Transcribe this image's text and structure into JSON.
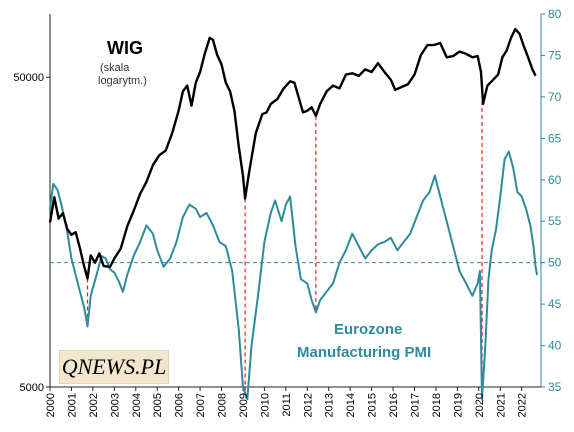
{
  "chart_data": {
    "type": "line",
    "wig_title": "WIG",
    "wig_note_line1": "(skala",
    "wig_note_line2": "logarytm.)",
    "pmi_label_line1": "Eurozone",
    "pmi_label_line2": "Manufacturing  PMI",
    "left_axis": {
      "scale": "log",
      "ticks": [
        "50000",
        "5000"
      ],
      "range": [
        5000,
        80000
      ]
    },
    "right_axis": {
      "scale": "linear",
      "ticks": [
        "35",
        "40",
        "45",
        "50",
        "55",
        "60",
        "65",
        "70",
        "75",
        "80"
      ],
      "range": [
        35,
        80
      ]
    },
    "x_ticks": [
      "2000",
      "2001",
      "2002",
      "2003",
      "2004",
      "2005",
      "2006",
      "2007",
      "2008",
      "2009",
      "2010",
      "2011",
      "2012",
      "2013",
      "2014",
      "2015",
      "2016",
      "2017",
      "2018",
      "2019",
      "2020",
      "2021",
      "2022"
    ],
    "x_range": [
      2000,
      2022.9
    ],
    "reference_line": {
      "value": 50,
      "axis": "right",
      "style": "dashed"
    },
    "event_lines": [
      2001.75,
      2009.1,
      2012.4,
      2020.15
    ],
    "colors": {
      "wig": "#000000",
      "pmi": "#2e8b9a",
      "event": "#e02020",
      "right_axis": "#2e8b9a"
    },
    "series": [
      {
        "name": "WIG",
        "axis": "left",
        "points": [
          [
            2000.0,
            17000
          ],
          [
            2000.2,
            20500
          ],
          [
            2000.4,
            17500
          ],
          [
            2000.6,
            18200
          ],
          [
            2000.8,
            16200
          ],
          [
            2001.0,
            15500
          ],
          [
            2001.2,
            15800
          ],
          [
            2001.4,
            14000
          ],
          [
            2001.6,
            12200
          ],
          [
            2001.75,
            11200
          ],
          [
            2001.9,
            13300
          ],
          [
            2002.1,
            12600
          ],
          [
            2002.3,
            13500
          ],
          [
            2002.5,
            12300
          ],
          [
            2002.8,
            12200
          ],
          [
            2003.0,
            13000
          ],
          [
            2003.3,
            14000
          ],
          [
            2003.6,
            16500
          ],
          [
            2003.9,
            18500
          ],
          [
            2004.2,
            21000
          ],
          [
            2004.5,
            23000
          ],
          [
            2004.8,
            26000
          ],
          [
            2005.1,
            28000
          ],
          [
            2005.4,
            29000
          ],
          [
            2005.7,
            33000
          ],
          [
            2006.0,
            39000
          ],
          [
            2006.2,
            45000
          ],
          [
            2006.4,
            47000
          ],
          [
            2006.6,
            40500
          ],
          [
            2006.8,
            48000
          ],
          [
            2007.0,
            52000
          ],
          [
            2007.2,
            59000
          ],
          [
            2007.45,
            67000
          ],
          [
            2007.6,
            66000
          ],
          [
            2007.8,
            59000
          ],
          [
            2008.0,
            55000
          ],
          [
            2008.2,
            48000
          ],
          [
            2008.4,
            45000
          ],
          [
            2008.6,
            39000
          ],
          [
            2008.8,
            30000
          ],
          [
            2009.0,
            24000
          ],
          [
            2009.1,
            20300
          ],
          [
            2009.3,
            25000
          ],
          [
            2009.6,
            33000
          ],
          [
            2009.9,
            38000
          ],
          [
            2010.1,
            38500
          ],
          [
            2010.3,
            41000
          ],
          [
            2010.6,
            42500
          ],
          [
            2010.9,
            46000
          ],
          [
            2011.2,
            48500
          ],
          [
            2011.4,
            48000
          ],
          [
            2011.6,
            43000
          ],
          [
            2011.8,
            38500
          ],
          [
            2012.0,
            39000
          ],
          [
            2012.2,
            40000
          ],
          [
            2012.4,
            37500
          ],
          [
            2012.6,
            41000
          ],
          [
            2012.9,
            45000
          ],
          [
            2013.2,
            47000
          ],
          [
            2013.5,
            46000
          ],
          [
            2013.8,
            51000
          ],
          [
            2014.1,
            51500
          ],
          [
            2014.4,
            50500
          ],
          [
            2014.7,
            53000
          ],
          [
            2015.0,
            52000
          ],
          [
            2015.3,
            55500
          ],
          [
            2015.6,
            52000
          ],
          [
            2015.9,
            49000
          ],
          [
            2016.1,
            45500
          ],
          [
            2016.4,
            46500
          ],
          [
            2016.7,
            47500
          ],
          [
            2017.0,
            51000
          ],
          [
            2017.3,
            59000
          ],
          [
            2017.6,
            63500
          ],
          [
            2017.9,
            63500
          ],
          [
            2018.2,
            64500
          ],
          [
            2018.5,
            58000
          ],
          [
            2018.8,
            58500
          ],
          [
            2019.1,
            60500
          ],
          [
            2019.4,
            59500
          ],
          [
            2019.7,
            58000
          ],
          [
            2019.95,
            58500
          ],
          [
            2020.1,
            52000
          ],
          [
            2020.2,
            41000
          ],
          [
            2020.4,
            47000
          ],
          [
            2020.6,
            48500
          ],
          [
            2020.9,
            51000
          ],
          [
            2021.1,
            58000
          ],
          [
            2021.3,
            61000
          ],
          [
            2021.5,
            67000
          ],
          [
            2021.7,
            71500
          ],
          [
            2021.9,
            69000
          ],
          [
            2022.1,
            63000
          ],
          [
            2022.3,
            58000
          ],
          [
            2022.5,
            53000
          ],
          [
            2022.65,
            50500
          ]
        ]
      },
      {
        "name": "Eurozone Manufacturing PMI",
        "axis": "right",
        "points": [
          [
            2000.0,
            56.5
          ],
          [
            2000.15,
            59.5
          ],
          [
            2000.35,
            58.8
          ],
          [
            2000.55,
            56.8
          ],
          [
            2000.8,
            53.8
          ],
          [
            2001.0,
            50.5
          ],
          [
            2001.2,
            48.5
          ],
          [
            2001.4,
            46.5
          ],
          [
            2001.6,
            44.5
          ],
          [
            2001.75,
            42.3
          ],
          [
            2001.9,
            46.0
          ],
          [
            2002.2,
            48.8
          ],
          [
            2002.4,
            50.8
          ],
          [
            2002.6,
            50.5
          ],
          [
            2002.8,
            49.2
          ],
          [
            2003.0,
            48.8
          ],
          [
            2003.2,
            47.8
          ],
          [
            2003.4,
            46.5
          ],
          [
            2003.6,
            48.5
          ],
          [
            2003.9,
            50.8
          ],
          [
            2004.2,
            52.5
          ],
          [
            2004.5,
            54.5
          ],
          [
            2004.8,
            53.5
          ],
          [
            2005.0,
            51.5
          ],
          [
            2005.3,
            49.5
          ],
          [
            2005.6,
            50.5
          ],
          [
            2005.9,
            52.5
          ],
          [
            2006.2,
            55.5
          ],
          [
            2006.5,
            57.0
          ],
          [
            2006.8,
            56.5
          ],
          [
            2007.0,
            55.5
          ],
          [
            2007.3,
            56.0
          ],
          [
            2007.6,
            54.5
          ],
          [
            2007.9,
            52.5
          ],
          [
            2008.2,
            52.0
          ],
          [
            2008.5,
            49.0
          ],
          [
            2008.8,
            42.0
          ],
          [
            2009.0,
            35.0
          ],
          [
            2009.2,
            33.5
          ],
          [
            2009.4,
            40.0
          ],
          [
            2009.7,
            46.0
          ],
          [
            2010.0,
            52.5
          ],
          [
            2010.3,
            56.0
          ],
          [
            2010.5,
            57.5
          ],
          [
            2010.8,
            55.0
          ],
          [
            2011.0,
            57.0
          ],
          [
            2011.2,
            58.0
          ],
          [
            2011.45,
            52.0
          ],
          [
            2011.7,
            48.0
          ],
          [
            2012.0,
            47.5
          ],
          [
            2012.2,
            45.5
          ],
          [
            2012.4,
            44.0
          ],
          [
            2012.6,
            45.5
          ],
          [
            2012.9,
            46.5
          ],
          [
            2013.2,
            47.5
          ],
          [
            2013.5,
            50.0
          ],
          [
            2013.8,
            51.5
          ],
          [
            2014.1,
            53.5
          ],
          [
            2014.4,
            52.0
          ],
          [
            2014.7,
            50.5
          ],
          [
            2015.0,
            51.5
          ],
          [
            2015.3,
            52.2
          ],
          [
            2015.6,
            52.5
          ],
          [
            2015.9,
            53.0
          ],
          [
            2016.2,
            51.5
          ],
          [
            2016.5,
            52.5
          ],
          [
            2016.8,
            53.5
          ],
          [
            2017.1,
            55.5
          ],
          [
            2017.4,
            57.5
          ],
          [
            2017.7,
            58.5
          ],
          [
            2017.95,
            60.5
          ],
          [
            2018.2,
            58.0
          ],
          [
            2018.5,
            55.0
          ],
          [
            2018.8,
            52.0
          ],
          [
            2019.1,
            49.0
          ],
          [
            2019.4,
            47.5
          ],
          [
            2019.7,
            46.0
          ],
          [
            2019.95,
            47.5
          ],
          [
            2020.05,
            49.0
          ],
          [
            2020.15,
            33.5
          ],
          [
            2020.3,
            40.0
          ],
          [
            2020.45,
            48.0
          ],
          [
            2020.6,
            51.5
          ],
          [
            2020.8,
            54.0
          ],
          [
            2021.0,
            58.0
          ],
          [
            2021.2,
            62.5
          ],
          [
            2021.4,
            63.4
          ],
          [
            2021.6,
            61.5
          ],
          [
            2021.8,
            58.5
          ],
          [
            2022.0,
            58.0
          ],
          [
            2022.2,
            56.5
          ],
          [
            2022.4,
            54.5
          ],
          [
            2022.55,
            52.0
          ],
          [
            2022.65,
            49.5
          ],
          [
            2022.72,
            48.5
          ]
        ]
      }
    ]
  },
  "logo": {
    "text": "QNEWS.PL"
  }
}
